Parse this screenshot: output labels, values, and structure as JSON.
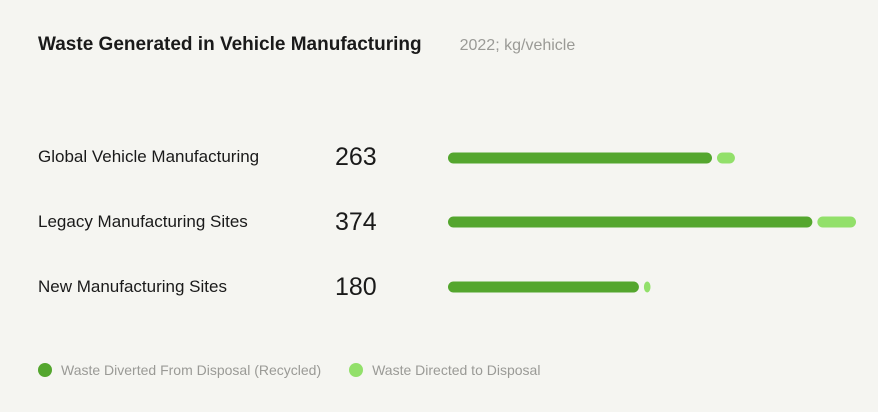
{
  "chart_data": {
    "type": "bar",
    "stacked": true,
    "orientation": "horizontal",
    "title": "Waste Generated in Vehicle Manufacturing",
    "subtitle": "2022; kg/vehicle",
    "categories": [
      "Global Vehicle Manufacturing",
      "Legacy Manufacturing Sites",
      "New Manufacturing Sites"
    ],
    "totals": [
      "263",
      "374",
      "180"
    ],
    "series": [
      {
        "name": "Waste Diverted From Disposal (Recycled)",
        "values": [
          242,
          334,
          175
        ],
        "color": "#54a62e"
      },
      {
        "name": "Waste Directed to Disposal",
        "values": [
          21,
          40,
          5
        ],
        "color": "#92e06a"
      }
    ],
    "xlim": [
      0,
      374
    ],
    "grid": false,
    "legend_position": "bottom-left"
  }
}
